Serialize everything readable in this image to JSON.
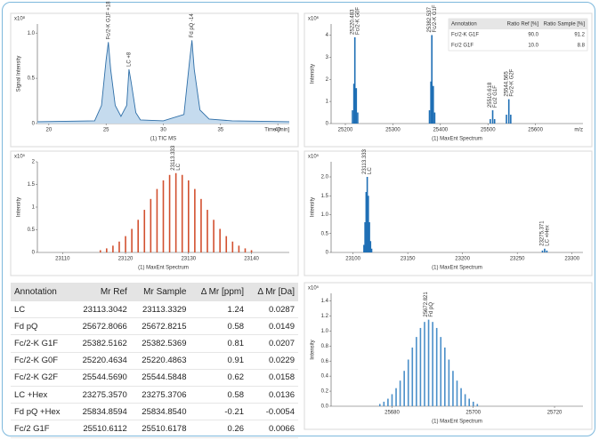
{
  "chart_data": [
    {
      "type": "area",
      "y_label": "Signal Intensity",
      "x_label": "(1) TIC MS",
      "x_unit": "Time [min]",
      "scale_label": "x10⁸",
      "color": "#2f6fa8",
      "x": [
        19,
        24,
        24.6,
        25,
        25.2,
        25.4,
        25.8,
        26.3,
        26.8,
        27,
        27.2,
        27.6,
        28,
        30,
        31.8,
        32.3,
        32.5,
        32.7,
        33.2,
        34,
        36,
        41
      ],
      "values": [
        0.02,
        0.03,
        0.2,
        0.7,
        0.9,
        0.6,
        0.2,
        0.08,
        0.2,
        0.6,
        0.45,
        0.12,
        0.04,
        0.03,
        0.1,
        0.7,
        0.92,
        0.6,
        0.15,
        0.05,
        0.03,
        0.02
      ],
      "xlim": [
        19,
        41
      ],
      "xticks": [
        20,
        25,
        30,
        35,
        40
      ],
      "ylim": [
        0,
        1.1
      ],
      "yticks": [
        0,
        0.5,
        {
          "value": 1,
          "label": "1.0"
        }
      ],
      "annotations": [
        {
          "x": 25.2,
          "y": 0.9,
          "text": [
            "Fc/2-K G1F +18"
          ]
        },
        {
          "x": 27,
          "y": 0.6,
          "text": [
            "LC +8"
          ]
        },
        {
          "x": 32.5,
          "y": 0.92,
          "text": [
            "Fd pQ -14"
          ]
        }
      ]
    },
    {
      "type": "stick",
      "y_label": "Intensity",
      "x_label": "(1) MaxEnt Spectrum",
      "x_unit": "m/z",
      "scale_label": "x10⁶",
      "color": "#1f6fb5",
      "x": [
        25215,
        25218,
        25220,
        25223,
        25226,
        25377,
        25380,
        25382,
        25385,
        25388,
        25505,
        25510,
        25514,
        25539,
        25544,
        25548
      ],
      "values": [
        0.6,
        1.8,
        3.9,
        1.6,
        0.5,
        0.6,
        1.9,
        4.0,
        1.7,
        0.5,
        0.2,
        0.6,
        0.2,
        0.4,
        1.1,
        0.4
      ],
      "xlim": [
        25170,
        25700
      ],
      "xticks": [
        25200,
        25300,
        25400,
        25500,
        25600
      ],
      "ylim": [
        0,
        4.5
      ],
      "yticks": [
        0,
        1,
        2,
        3,
        4
      ],
      "annotations": [
        {
          "x": 25220,
          "y": 3.9,
          "text": [
            "25220.483",
            "Fc/2-K G0F"
          ]
        },
        {
          "x": 25382,
          "y": 4.0,
          "text": [
            "25382.537",
            "Fc/2-K G1F"
          ]
        },
        {
          "x": 25510,
          "y": 0.6,
          "text": [
            "25510.618",
            "Fc/2 G1F"
          ]
        },
        {
          "x": 25544,
          "y": 1.1,
          "text": [
            "25544.565",
            "Fc/2-K G2F"
          ]
        }
      ],
      "inset_table": {
        "columns": [
          "Annotation",
          "Ratio Ref [%]",
          "Ratio Sample [%]"
        ],
        "rows": [
          [
            "Fc/2-K G1F",
            "90.0",
            "91.2"
          ],
          [
            "Fc/2 G1F",
            "10.0",
            "8.8"
          ]
        ]
      }
    },
    {
      "type": "stick",
      "y_label": "Intensity",
      "x_label": "(1) MaxEnt Spectrum",
      "scale_label": "x10⁵",
      "color": "#d2502f",
      "x": [
        23116,
        23117,
        23118,
        23119,
        23120,
        23121,
        23122,
        23123,
        23124,
        23125,
        23126,
        23127,
        23128,
        23129,
        23130,
        23131,
        23132,
        23133,
        23134,
        23135,
        23136,
        23137,
        23138,
        23139,
        23140
      ],
      "values": [
        0.05,
        0.09,
        0.15,
        0.24,
        0.36,
        0.52,
        0.72,
        0.94,
        1.18,
        1.4,
        1.59,
        1.71,
        1.75,
        1.71,
        1.59,
        1.4,
        1.18,
        0.94,
        0.72,
        0.52,
        0.36,
        0.24,
        0.15,
        0.09,
        0.05
      ],
      "xlim": [
        23106,
        23146
      ],
      "xticks": [
        23110,
        23120,
        23130,
        23140
      ],
      "ylim": [
        0,
        2
      ],
      "yticks": [
        0,
        0.5,
        1,
        1.5,
        2
      ],
      "annotations": [
        {
          "x": 23128,
          "y": 1.75,
          "text": [
            "23113.333",
            "LC"
          ]
        }
      ]
    },
    {
      "type": "stick",
      "y_label": "Intensity",
      "x_label": "(1) MaxEnt Spectrum",
      "scale_label": "x10⁵",
      "color": "#1f6fb5",
      "x": [
        23110,
        23111,
        23112,
        23113,
        23114,
        23115,
        23116,
        23117,
        23273,
        23275,
        23277
      ],
      "values": [
        0.2,
        0.8,
        1.6,
        2.0,
        1.5,
        0.8,
        0.3,
        0.1,
        0.05,
        0.1,
        0.05
      ],
      "xlim": [
        23080,
        23310
      ],
      "xticks": [
        23100,
        23150,
        23200,
        23250,
        23300
      ],
      "ylim": [
        0,
        2.4
      ],
      "yticks": [
        0,
        0.5,
        {
          "value": 1,
          "label": "1.0"
        },
        1.5,
        {
          "value": 2,
          "label": "2.0"
        }
      ],
      "annotations": [
        {
          "x": 23113,
          "y": 2.0,
          "text": [
            "23113.333",
            "LC"
          ]
        },
        {
          "x": 23275,
          "y": 0.1,
          "text": [
            "23275.371",
            "LC +Hex"
          ]
        }
      ]
    },
    {
      "type": "stick",
      "y_label": "Intensity",
      "x_label": "(1) MaxEnt Spectrum",
      "scale_label": "x10⁵",
      "color": "#4a8fc9",
      "x": [
        25677,
        25678,
        25679,
        25680,
        25681,
        25682,
        25683,
        25684,
        25685,
        25686,
        25687,
        25688,
        25689,
        25690,
        25691,
        25692,
        25693,
        25694,
        25695,
        25696,
        25697,
        25698,
        25699,
        25700,
        25701
      ],
      "values": [
        0.03,
        0.06,
        0.1,
        0.16,
        0.24,
        0.34,
        0.47,
        0.62,
        0.78,
        0.92,
        1.04,
        1.12,
        1.15,
        1.12,
        1.04,
        0.92,
        0.78,
        0.62,
        0.47,
        0.34,
        0.24,
        0.16,
        0.1,
        0.06,
        0.03
      ],
      "xlim": [
        25665,
        25727
      ],
      "xticks": [
        25680,
        25700,
        25720
      ],
      "ylim": [
        0,
        1.5
      ],
      "yticks": [
        {
          "value": 0,
          "label": "0.0"
        },
        0.2,
        0.4,
        0.6,
        0.8,
        {
          "value": 1,
          "label": "1.0"
        },
        1.2,
        1.4
      ],
      "annotations": [
        {
          "x": 25689,
          "y": 1.15,
          "text": [
            "25672.821",
            "Fd pQ"
          ]
        }
      ]
    }
  ],
  "table": {
    "columns": [
      "Annotation",
      "Mr Ref",
      "Mr Sample",
      "Δ Mr [ppm]",
      "Δ Mr [Da]"
    ],
    "rows": [
      [
        "LC",
        "23113.3042",
        "23113.3329",
        "1.24",
        "0.0287"
      ],
      [
        "Fd pQ",
        "25672.8066",
        "25672.8215",
        "0.58",
        "0.0149"
      ],
      [
        "Fc/2-K G1F",
        "25382.5162",
        "25382.5369",
        "0.81",
        "0.0207"
      ],
      [
        "Fc/2-K G0F",
        "25220.4634",
        "25220.4863",
        "0.91",
        "0.0229"
      ],
      [
        "Fc/2-K G2F",
        "25544.5690",
        "25544.5848",
        "0.62",
        "0.0158"
      ],
      [
        "LC +Hex",
        "23275.3570",
        "23275.3706",
        "0.58",
        "0.0136"
      ],
      [
        "Fd pQ +Hex",
        "25834.8594",
        "25834.8540",
        "-0.21",
        "-0.0054"
      ],
      [
        "Fc/2 G1F",
        "25510.6112",
        "25510.6178",
        "0.26",
        "0.0066"
      ]
    ]
  }
}
